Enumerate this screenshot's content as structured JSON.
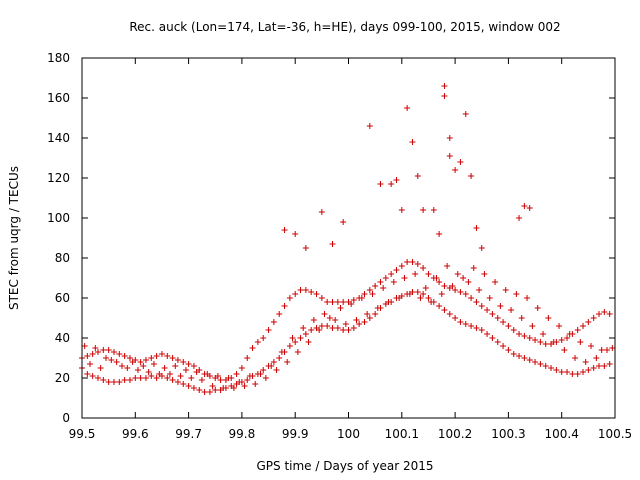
{
  "chart_data": {
    "type": "scatter",
    "title": "Rec. auck (Lon=174, Lat=-36, h=HE), days 099-100, 2015, window 002",
    "xlabel": "GPS time / Days of year 2015",
    "ylabel": "STEC from uqrg / TECUs",
    "xlim": [
      99.5,
      100.5
    ],
    "ylim": [
      0,
      180
    ],
    "x_ticks": [
      "99.5",
      "99.6",
      "99.7",
      "99.8",
      "99.9",
      "100",
      "100.1",
      "100.2",
      "100.3",
      "100.4",
      "100.5"
    ],
    "y_ticks": [
      "0",
      "20",
      "40",
      "60",
      "80",
      "100",
      "120",
      "140",
      "160",
      "180"
    ],
    "marker": "plus",
    "color": "#cc0000",
    "series": [
      {
        "name": "STEC",
        "x": [
          99.5,
          99.51,
          99.52,
          99.53,
          99.54,
          99.55,
          99.56,
          99.57,
          99.58,
          99.59,
          99.6,
          99.61,
          99.62,
          99.63,
          99.64,
          99.65,
          99.66,
          99.67,
          99.68,
          99.69,
          99.7,
          99.71,
          99.72,
          99.73,
          99.74,
          99.75,
          99.76,
          99.77,
          99.78,
          99.79,
          99.8,
          99.81,
          99.82,
          99.83,
          99.84,
          99.85,
          99.86,
          99.87,
          99.88,
          99.89,
          99.9,
          99.91,
          99.92,
          99.93,
          99.94,
          99.95,
          99.96,
          99.97,
          99.98,
          99.99,
          100.0,
          100.01,
          100.02,
          100.03,
          100.04,
          100.05,
          100.06,
          100.07,
          100.08,
          100.09,
          100.1,
          100.11,
          100.12,
          100.13,
          100.14,
          100.15,
          100.16,
          100.17,
          100.18,
          100.19,
          100.2,
          100.21,
          100.22,
          100.23,
          100.24,
          100.25,
          100.26,
          100.27,
          100.28,
          100.29,
          100.3,
          100.31,
          100.32,
          100.33,
          100.34,
          100.35,
          100.36,
          100.37,
          100.38,
          100.39,
          100.4,
          100.41,
          100.42,
          100.43,
          100.44,
          100.45,
          100.46,
          100.47,
          100.48,
          100.49,
          99.5,
          99.51,
          99.52,
          99.53,
          99.54,
          99.55,
          99.56,
          99.57,
          99.58,
          99.59,
          99.6,
          99.61,
          99.62,
          99.63,
          99.64,
          99.65,
          99.66,
          99.67,
          99.68,
          99.69,
          99.7,
          99.71,
          99.72,
          99.73,
          99.74,
          99.75,
          99.76,
          99.77,
          99.78,
          99.79,
          99.8,
          99.81,
          99.82,
          99.83,
          99.84,
          99.85,
          99.86,
          99.87,
          99.88,
          99.89,
          99.9,
          99.91,
          99.92,
          99.93,
          99.94,
          99.95,
          99.96,
          99.97,
          99.98,
          99.99,
          100.0,
          100.01,
          100.02,
          100.03,
          100.04,
          100.05,
          100.06,
          100.07,
          100.08,
          100.09,
          100.1,
          100.11,
          100.12,
          100.13,
          100.14,
          100.15,
          100.16,
          100.17,
          100.18,
          100.19,
          100.2,
          100.21,
          100.22,
          100.23,
          100.24,
          100.25,
          100.26,
          100.27,
          100.28,
          100.29,
          100.3,
          100.31,
          100.32,
          100.33,
          100.34,
          100.35,
          100.36,
          100.37,
          100.38,
          100.39,
          100.4,
          100.41,
          100.42,
          100.43,
          100.44,
          100.45,
          100.46,
          100.47,
          100.48,
          100.49,
          99.505,
          99.525,
          99.545,
          99.565,
          99.585,
          99.605,
          99.625,
          99.645,
          99.665,
          99.685,
          99.705,
          99.725,
          99.745,
          99.765,
          99.785,
          99.805,
          99.825,
          99.845,
          99.865,
          99.885,
          99.905,
          99.925,
          99.945,
          99.965,
          99.985,
          100.005,
          100.025,
          100.045,
          100.065,
          100.085,
          100.105,
          100.125,
          100.145,
          100.165,
          100.185,
          100.205,
          100.225,
          100.245,
          100.265,
          100.285,
          100.305,
          100.325,
          100.345,
          100.365,
          100.385,
          100.405,
          100.425,
          100.445,
          100.465,
          100.485,
          99.515,
          99.535,
          99.555,
          99.575,
          99.595,
          99.615,
          99.635,
          99.655,
          99.675,
          99.695,
          99.715,
          99.735,
          99.755,
          99.775,
          99.795,
          99.815,
          99.835,
          99.855,
          99.875,
          99.895,
          99.915,
          99.935,
          99.955,
          99.975,
          99.995,
          100.015,
          100.035,
          100.055,
          100.075,
          100.095,
          100.115,
          100.135,
          100.155,
          100.175,
          100.195,
          100.215,
          100.235,
          100.255,
          100.275,
          100.295,
          100.315,
          100.335,
          100.355,
          100.375,
          100.395,
          100.415,
          100.435,
          100.455,
          100.475,
          100.495,
          99.88,
          99.9,
          99.92,
          99.95,
          99.97,
          99.99,
          100.04,
          100.06,
          100.08,
          100.09,
          100.1,
          100.11,
          100.12,
          100.13,
          100.14,
          100.16,
          100.17,
          100.18,
          100.18,
          100.19,
          100.19,
          100.2,
          100.21,
          100.22,
          100.23,
          100.24,
          100.25,
          100.32,
          100.33,
          100.34
        ],
        "y": [
          25,
          22,
          21,
          20,
          19,
          18,
          18,
          18,
          19,
          19,
          20,
          20,
          20,
          21,
          20,
          21,
          20,
          19,
          18,
          17,
          16,
          15,
          14,
          13,
          13,
          14,
          14,
          15,
          16,
          17,
          18,
          19,
          21,
          22,
          24,
          26,
          28,
          30,
          33,
          36,
          38,
          40,
          42,
          44,
          45,
          46,
          46,
          45,
          45,
          44,
          44,
          45,
          47,
          48,
          50,
          52,
          55,
          57,
          58,
          60,
          61,
          62,
          63,
          63,
          62,
          60,
          58,
          56,
          54,
          52,
          50,
          48,
          47,
          46,
          45,
          44,
          42,
          40,
          38,
          36,
          34,
          32,
          31,
          30,
          29,
          28,
          27,
          26,
          25,
          24,
          23,
          23,
          22,
          22,
          23,
          24,
          25,
          26,
          26,
          27,
          30,
          31,
          32,
          33,
          34,
          34,
          33,
          32,
          31,
          30,
          29,
          28,
          29,
          30,
          31,
          32,
          31,
          30,
          29,
          28,
          27,
          26,
          24,
          22,
          21,
          20,
          19,
          19,
          20,
          22,
          25,
          30,
          35,
          38,
          40,
          44,
          48,
          52,
          56,
          60,
          62,
          64,
          64,
          63,
          62,
          60,
          58,
          58,
          58,
          58,
          58,
          59,
          60,
          62,
          64,
          66,
          68,
          70,
          72,
          74,
          76,
          78,
          78,
          77,
          75,
          72,
          70,
          68,
          66,
          65,
          64,
          63,
          62,
          60,
          58,
          56,
          54,
          52,
          50,
          48,
          46,
          44,
          42,
          41,
          40,
          39,
          38,
          37,
          37,
          38,
          39,
          40,
          42,
          44,
          46,
          48,
          50,
          52,
          53,
          52,
          36,
          35,
          30,
          28,
          25,
          24,
          23,
          22,
          22,
          21,
          20,
          19,
          16,
          15,
          15,
          16,
          17,
          20,
          24,
          28,
          33,
          38,
          44,
          50,
          55,
          57,
          60,
          62,
          65,
          68,
          70,
          72,
          65,
          70,
          76,
          72,
          68,
          64,
          60,
          56,
          54,
          50,
          46,
          42,
          38,
          34,
          30,
          28,
          30,
          34,
          27,
          25,
          29,
          26,
          28,
          26,
          27,
          25,
          26,
          24,
          23,
          22,
          21,
          20,
          18,
          21,
          22,
          26,
          33,
          40,
          45,
          49,
          52,
          49,
          47,
          49,
          52,
          55,
          58,
          60,
          62,
          60,
          58,
          62,
          66,
          70,
          75,
          72,
          68,
          64,
          62,
          60,
          55,
          50,
          46,
          42,
          38,
          36,
          34,
          35,
          94,
          92,
          85,
          103,
          87,
          98,
          146,
          117,
          117,
          119,
          104,
          155,
          138,
          121,
          104,
          104,
          92,
          161,
          166,
          140,
          131,
          124,
          128,
          152,
          121,
          95,
          85,
          100,
          106,
          105
        ]
      }
    ]
  }
}
